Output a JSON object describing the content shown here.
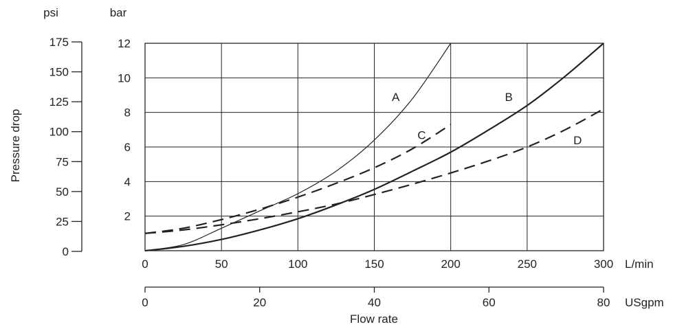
{
  "chart_data": {
    "type": "line",
    "left_units": [
      "psi",
      "bar"
    ],
    "y_psi_ticks": [
      "0",
      "25",
      "50",
      "75",
      "100",
      "125",
      "150",
      "175"
    ],
    "y_psi_values": [
      0,
      25,
      50,
      75,
      100,
      125,
      150,
      175
    ],
    "y_bar_ticks": [
      "2",
      "4",
      "6",
      "8",
      "10",
      "12"
    ],
    "y_bar_values": [
      2,
      4,
      6,
      8,
      10,
      12
    ],
    "ylabel": "Pressure drop",
    "ylim_bar": [
      0,
      12
    ],
    "x_lmin_ticks": [
      "0",
      "50",
      "100",
      "150",
      "200",
      "250",
      "300"
    ],
    "x_lmin_values": [
      0,
      50,
      100,
      150,
      200,
      250,
      300
    ],
    "x_lmin_unit": "L/min",
    "xlim_lmin": [
      0,
      300
    ],
    "x_usgpm_ticks": [
      "0",
      "20",
      "40",
      "60",
      "80"
    ],
    "x_usgpm_values": [
      0,
      20,
      40,
      60,
      80
    ],
    "x_usgpm_unit": "USgpm",
    "xlim_usgpm": [
      0,
      80
    ],
    "xlabel": "Flow rate",
    "grid": true,
    "series": [
      {
        "name": "A",
        "style": "thin-solid",
        "x": [
          0,
          25,
          50,
          75,
          100,
          125,
          150,
          175,
          200
        ],
        "y": [
          0,
          0.35,
          1.3,
          2.3,
          3.3,
          4.6,
          6.4,
          8.8,
          12.0
        ],
        "label_at": [
          164,
          8.9
        ]
      },
      {
        "name": "B",
        "style": "bold-solid",
        "x": [
          0,
          25,
          50,
          75,
          100,
          125,
          150,
          175,
          200,
          225,
          250,
          275,
          300
        ],
        "y": [
          0,
          0.25,
          0.65,
          1.2,
          1.85,
          2.65,
          3.55,
          4.6,
          5.7,
          7.0,
          8.4,
          10.1,
          12.0
        ],
        "label_at": [
          238,
          8.9
        ]
      },
      {
        "name": "C",
        "style": "dashed",
        "x": [
          0,
          25,
          50,
          75,
          100,
          125,
          150,
          175,
          200
        ],
        "y": [
          1.0,
          1.3,
          1.8,
          2.4,
          3.1,
          3.9,
          4.8,
          5.9,
          7.3
        ],
        "label_at": [
          181,
          6.7
        ]
      },
      {
        "name": "D",
        "style": "dashed",
        "x": [
          0,
          25,
          50,
          75,
          100,
          125,
          150,
          175,
          200,
          225,
          250,
          275,
          300
        ],
        "y": [
          1.0,
          1.2,
          1.5,
          1.85,
          2.25,
          2.7,
          3.25,
          3.85,
          4.5,
          5.2,
          6.0,
          7.0,
          8.2
        ],
        "label_at": [
          283,
          6.4
        ]
      }
    ]
  }
}
